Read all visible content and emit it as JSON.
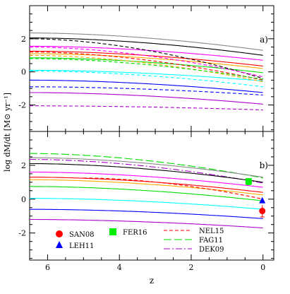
{
  "chart_data": {
    "type": "line",
    "xlabel": "z",
    "ylabel": "log dM/dt [M⊙ yr⁻¹]",
    "xlim": [
      6.5,
      -0.3
    ],
    "ylim": [
      -3.6,
      4.0
    ],
    "x_ticks": [
      6,
      4,
      2,
      0
    ],
    "y_ticks": [
      -2,
      0,
      2
    ],
    "grid": false,
    "legend": {
      "placement": "bottom of panel b"
    },
    "panels": [
      {
        "label": "a)",
        "series": [
          {
            "color": "#888888",
            "style": "solid",
            "y0": 2.35,
            "y_end": 1.3
          },
          {
            "color": "#000000",
            "style": "solid",
            "y0": 2.05,
            "y_end": 1.0
          },
          {
            "color": "#ff00ff",
            "style": "solid",
            "y0": 1.55,
            "y_end": 0.7
          },
          {
            "color": "#ff0000",
            "style": "solid",
            "y0": 1.25,
            "y_end": 0.35
          },
          {
            "color": "#ffaa00",
            "style": "solid",
            "y0": 1.1,
            "y_end": 0.2
          },
          {
            "color": "#00dd00",
            "style": "solid",
            "y0": 0.85,
            "y_end": -0.05
          },
          {
            "color": "#00ffff",
            "style": "solid",
            "y0": 0.1,
            "y_end": -0.55
          },
          {
            "color": "#0000ff",
            "style": "solid",
            "y0": -0.5,
            "y_end": -1.25
          },
          {
            "color": "#aa00cc",
            "style": "solid",
            "y0": -1.25,
            "y_end": -1.95
          },
          {
            "color": "#000000",
            "style": "dashed",
            "y0": 2.0,
            "y_end": -0.4
          },
          {
            "color": "#ff00ff",
            "style": "dashed",
            "y0": 1.5,
            "y_end": -0.3
          },
          {
            "color": "#ff0000",
            "style": "dashed",
            "y0": 1.2,
            "y_end": -0.5
          },
          {
            "color": "#ffaa00",
            "style": "dashed",
            "y0": 1.0,
            "y_end": -0.6
          },
          {
            "color": "#00dd00",
            "style": "dashed",
            "y0": 0.8,
            "y_end": -0.45
          },
          {
            "color": "#00ffff",
            "style": "dashed",
            "y0": 0.05,
            "y_end": -0.9
          },
          {
            "color": "#0000ff",
            "style": "dashed",
            "y0": -0.9,
            "y_end": -1.4
          },
          {
            "color": "#aa00cc",
            "style": "dashed",
            "y0": -2.05,
            "y_end": -2.3
          }
        ]
      },
      {
        "label": "b)",
        "series": [
          {
            "color": "#00dd00",
            "style": "longdash",
            "y0": 2.7,
            "y_end": 1.25
          },
          {
            "color": "#aa00cc",
            "style": "dashdot",
            "y0": 2.35,
            "y_end": 0.95
          },
          {
            "color": "#888888",
            "style": "solid",
            "y0": 2.45,
            "y_end": 1.3
          },
          {
            "color": "#000000",
            "style": "solid",
            "y0": 2.1,
            "y_end": 1.0
          },
          {
            "color": "#ff00ff",
            "style": "solid",
            "y0": 1.6,
            "y_end": 0.7
          },
          {
            "color": "#ff0000",
            "style": "solid",
            "y0": 1.3,
            "y_end": 0.4
          },
          {
            "color": "#ffaa00",
            "style": "solid",
            "y0": 1.15,
            "y_end": 0.25
          },
          {
            "color": "#00dd00",
            "style": "solid",
            "y0": 0.75,
            "y_end": -0.1
          },
          {
            "color": "#00ffff",
            "style": "solid",
            "y0": 0.05,
            "y_end": -0.6
          },
          {
            "color": "#0000ff",
            "style": "solid",
            "y0": -0.6,
            "y_end": -1.15
          },
          {
            "color": "#aa00cc",
            "style": "solid",
            "y0": -1.2,
            "y_end": -1.7
          },
          {
            "color": "#ff0000",
            "style": "dashed",
            "y0": 1.25,
            "y_end": 0.0,
            "x_start": 5.0
          }
        ],
        "points": [
          {
            "label": "SAN08",
            "marker": "circle",
            "color": "#ff0000",
            "x": 0.02,
            "y": -0.7,
            "err": 0.35
          },
          {
            "label": "LEH11",
            "marker": "triangle",
            "color": "#0000ff",
            "x": 0.02,
            "y": -0.1
          },
          {
            "label": "FER16",
            "marker": "square",
            "color": "#00ee00",
            "x": 0.4,
            "y": 1.05,
            "err": 0.2
          }
        ]
      }
    ],
    "legend_entries": [
      {
        "label": "SAN08",
        "marker": "circle",
        "color": "#ff0000"
      },
      {
        "label": "FER16",
        "marker": "square",
        "color": "#00ee00"
      },
      {
        "label": "LEH11",
        "marker": "triangle",
        "color": "#0000ff"
      },
      {
        "label": "NEL15",
        "line": "dashed",
        "color": "#ff0000"
      },
      {
        "label": "FAG11",
        "line": "longdash",
        "color": "#00dd00"
      },
      {
        "label": "DEK09",
        "line": "dashdot",
        "color": "#aa00cc"
      }
    ]
  }
}
